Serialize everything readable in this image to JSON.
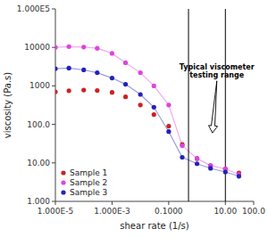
{
  "chart_data": {
    "type": "scatter",
    "xlabel": "shear rate (1/s)",
    "ylabel": "viscosity (Pa.s)",
    "log": true,
    "legend": "lower left",
    "x": [
      1e-05,
      3e-05,
      0.0001,
      0.0003,
      0.001,
      0.003,
      0.01,
      0.03,
      0.1,
      0.3,
      1.0,
      3.0,
      10.0,
      30.0
    ],
    "series": [
      {
        "name": "Sample 1",
        "color": "#cc2222",
        "marker": "circle",
        "line_style": "none",
        "values": [
          700,
          750,
          780,
          760,
          680,
          520,
          320,
          180,
          90,
          30,
          13,
          8.5,
          7.0,
          5.5
        ]
      },
      {
        "name": "Sample 2",
        "color": "#dd44dd",
        "marker": "circle",
        "line_style": "solid",
        "values": [
          10000,
          10500,
          10200,
          9500,
          7000,
          4000,
          2200,
          1000,
          320,
          28,
          13,
          8.5,
          7.0,
          5.0
        ]
      },
      {
        "name": "Sample 3",
        "color": "#2222bb",
        "marker": "circle",
        "line_style": "solid",
        "values": [
          2800,
          2900,
          2600,
          2200,
          1600,
          1100,
          600,
          280,
          65,
          14,
          9.5,
          7.2,
          5.8,
          4.5
        ]
      }
    ],
    "xlim": [
      1e-05,
      100
    ],
    "ylim": [
      1,
      100000
    ],
    "xticks": [
      {
        "value": 1e-05,
        "label": "1.000E-5"
      },
      {
        "value": 0.001,
        "label": "1.000E-3"
      },
      {
        "value": 0.1,
        "label": "0.1000"
      },
      {
        "value": 10,
        "label": "10.00"
      },
      {
        "value": 100,
        "label": "100.0"
      }
    ],
    "yticks": [
      {
        "value": 1,
        "label": "1.000"
      },
      {
        "value": 10,
        "label": "10.00"
      },
      {
        "value": 100,
        "label": "100.0"
      },
      1000,
      10000,
      {
        "value": 100000,
        "label": "1.000E5"
      }
    ],
    "vlines": [
      0.5,
      10.0
    ],
    "annotations": [
      {
        "text": "Typical viscometer\ntesting range",
        "x": 5.0,
        "y": 1500,
        "arrow_x": 3.5,
        "arrow_y": 60
      }
    ]
  }
}
